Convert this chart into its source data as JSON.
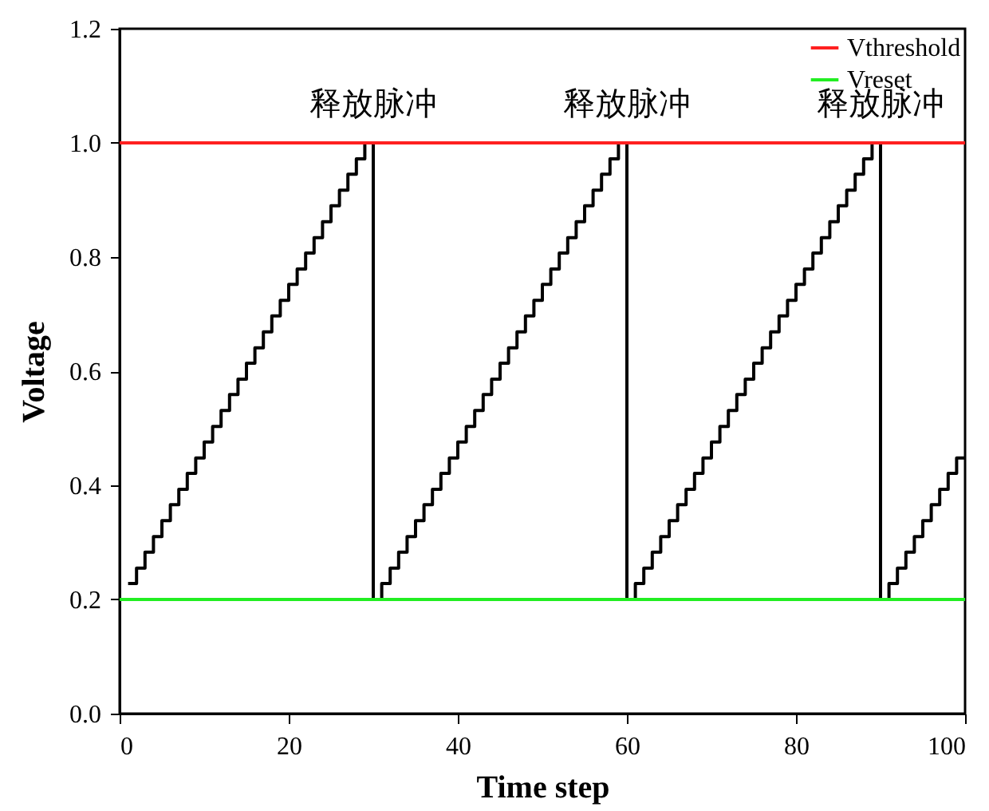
{
  "chart_data": {
    "type": "line",
    "xlabel": "Time step",
    "ylabel": "Voltage",
    "xlim": [
      0,
      100
    ],
    "xticks": [
      0,
      20,
      40,
      60,
      80,
      100
    ],
    "ylim": [
      0,
      1.2
    ],
    "yticks": [
      {
        "value": 0,
        "label": "0.0"
      },
      {
        "value": 0.2,
        "label": "0.2"
      },
      {
        "value": 0.4,
        "label": "0.4"
      },
      {
        "value": 0.6,
        "label": "0.6"
      },
      {
        "value": 0.8,
        "label": "0.8"
      },
      {
        "value": 1.0,
        "label": "1.0"
      },
      {
        "value": 1.2,
        "label": "1.2"
      }
    ],
    "legend": "top right",
    "grid": false,
    "annotations": [
      {
        "text": "释放脉冲",
        "x": 30,
        "y": 1.0
      },
      {
        "text": "释放脉冲",
        "x": 60,
        "y": 1.0
      },
      {
        "text": "释放脉冲",
        "x": 90,
        "y": 1.0
      }
    ],
    "series": [
      {
        "type": "step",
        "color": "#000000",
        "x": [
          1,
          2,
          3,
          4,
          5,
          6,
          7,
          8,
          9,
          10,
          11,
          12,
          13,
          14,
          15,
          16,
          17,
          18,
          19,
          20,
          21,
          22,
          23,
          24,
          25,
          26,
          27,
          28,
          29,
          30,
          31,
          32,
          33,
          34,
          35,
          36,
          37,
          38,
          39,
          40,
          41,
          42,
          43,
          44,
          45,
          46,
          47,
          48,
          49,
          50,
          51,
          52,
          53,
          54,
          55,
          56,
          57,
          58,
          59,
          60,
          61,
          62,
          63,
          64,
          65,
          66,
          67,
          68,
          69,
          70,
          71,
          72,
          73,
          74,
          75,
          76,
          77,
          78,
          79,
          80,
          81,
          82,
          83,
          84,
          85,
          86,
          87,
          88,
          89,
          90,
          91,
          92,
          93,
          94,
          95,
          96,
          97,
          98,
          99,
          100
        ],
        "values": [
          0.228,
          0.255,
          0.283,
          0.31,
          0.338,
          0.366,
          0.393,
          0.421,
          0.448,
          0.476,
          0.503,
          0.531,
          0.559,
          0.586,
          0.614,
          0.641,
          0.669,
          0.697,
          0.724,
          0.752,
          0.779,
          0.807,
          0.834,
          0.862,
          0.89,
          0.917,
          0.945,
          0.972,
          1.0,
          0.2,
          0.228,
          0.255,
          0.283,
          0.31,
          0.338,
          0.366,
          0.393,
          0.421,
          0.448,
          0.476,
          0.503,
          0.531,
          0.559,
          0.586,
          0.614,
          0.641,
          0.669,
          0.697,
          0.724,
          0.752,
          0.779,
          0.807,
          0.834,
          0.862,
          0.89,
          0.917,
          0.945,
          0.972,
          1.0,
          0.2,
          0.228,
          0.255,
          0.283,
          0.31,
          0.338,
          0.366,
          0.393,
          0.421,
          0.448,
          0.476,
          0.503,
          0.531,
          0.559,
          0.586,
          0.614,
          0.641,
          0.669,
          0.697,
          0.724,
          0.752,
          0.779,
          0.807,
          0.834,
          0.862,
          0.89,
          0.917,
          0.945,
          0.972,
          1.0,
          0.2,
          0.228,
          0.255,
          0.283,
          0.31,
          0.338,
          0.366,
          0.393,
          0.421,
          0.448,
          0.448
        ]
      },
      {
        "name": "Vthreshold",
        "color": "#ff2020",
        "x": [
          0,
          100
        ],
        "values": [
          1.0,
          1.0
        ]
      },
      {
        "name": "Vreset",
        "color": "#22ee22",
        "x": [
          0,
          100
        ],
        "values": [
          0.2,
          0.2
        ]
      }
    ]
  }
}
